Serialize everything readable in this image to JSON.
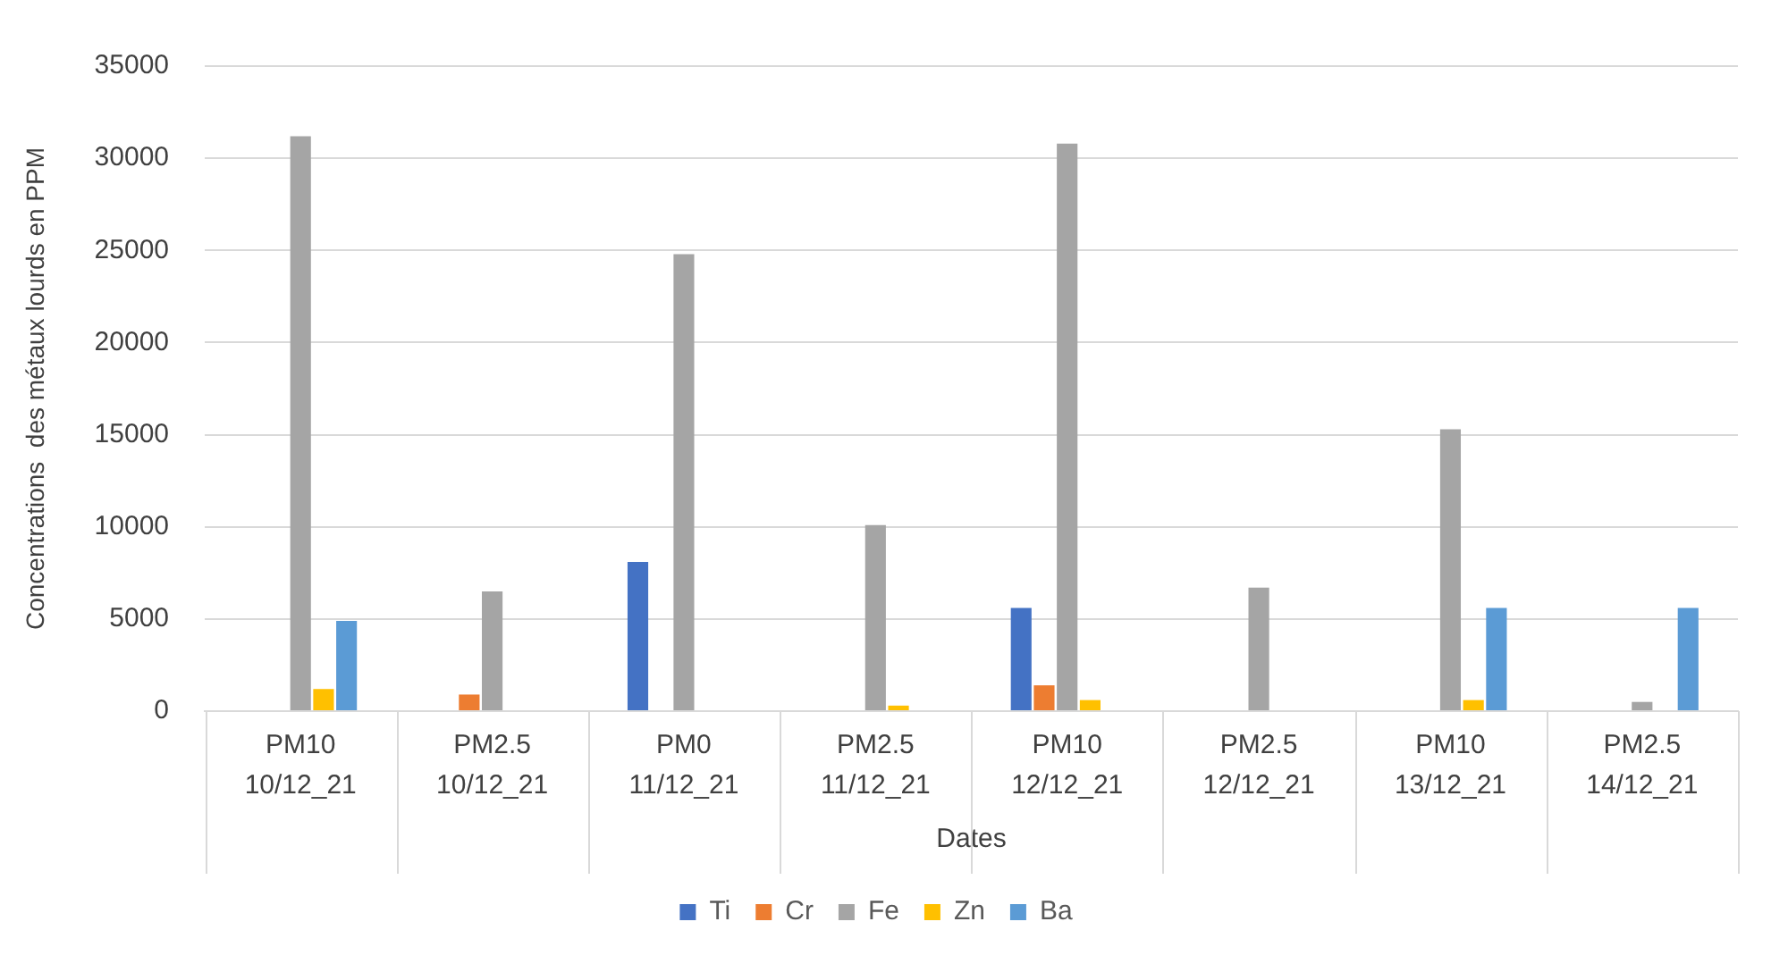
{
  "chart_data": {
    "type": "bar",
    "xlabel": "Dates",
    "ylabel": "Concentrations  des métaux lourds en PPM",
    "categories": [
      "PM10 10/12_21",
      "PM2.5 10/12_21",
      "PM0 11/12_21",
      "PM2.5 11/12_21",
      "PM10 12/12_21",
      "PM2.5 12/12_21",
      "PM10 13/12_21",
      "PM2.5 14/12_21"
    ],
    "series": [
      {
        "name": "Ti",
        "color": "#4472c4",
        "values": [
          null,
          null,
          8100,
          null,
          5600,
          null,
          null,
          null
        ]
      },
      {
        "name": "Cr",
        "color": "#ed7d31",
        "values": [
          null,
          900,
          null,
          null,
          1400,
          null,
          null,
          null
        ]
      },
      {
        "name": "Fe",
        "color": "#a5a5a5",
        "values": [
          31200,
          6500,
          24800,
          10100,
          30800,
          6700,
          15300,
          500
        ]
      },
      {
        "name": "Zn",
        "color": "#ffc000",
        "values": [
          1200,
          null,
          null,
          300,
          600,
          null,
          600,
          null
        ]
      },
      {
        "name": "Ba",
        "color": "#5b9bd5",
        "values": [
          4900,
          null,
          null,
          null,
          null,
          null,
          5600,
          5600
        ]
      }
    ],
    "ylim": [
      0,
      35000
    ],
    "yticks": [
      0,
      5000,
      10000,
      15000,
      20000,
      25000,
      30000,
      35000
    ],
    "grid": "y",
    "legend": "bottom"
  }
}
